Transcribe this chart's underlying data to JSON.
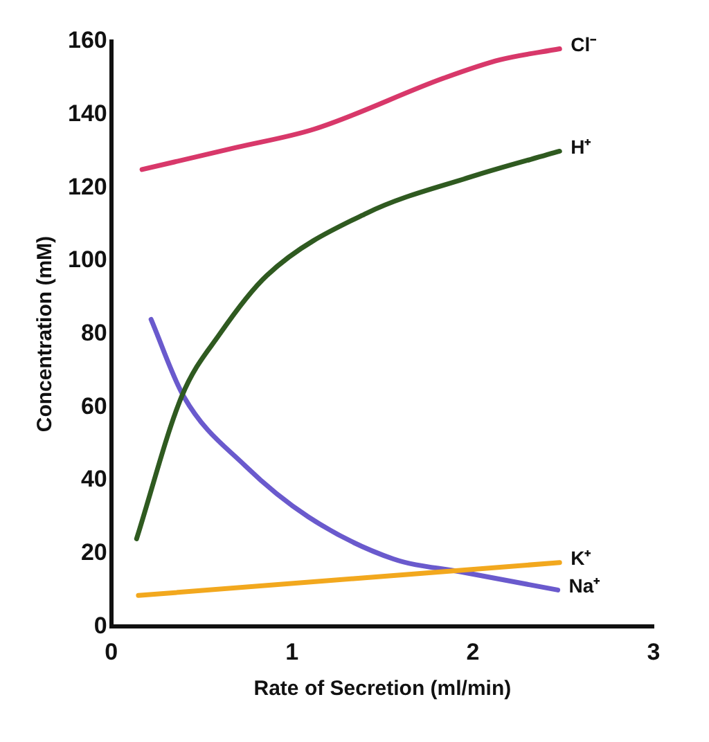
{
  "chart_data": {
    "type": "line",
    "xlabel": "Rate of Secretion (ml/min)",
    "ylabel": "Concentration (mM)",
    "xlim": [
      0,
      3
    ],
    "xticks": [
      0,
      1,
      2,
      3
    ],
    "ylim": [
      0,
      160
    ],
    "yticks": [
      0,
      20,
      40,
      60,
      80,
      100,
      120,
      140,
      160
    ],
    "grid": false,
    "legend": false,
    "marker": "none",
    "line_style": "solid",
    "series": [
      {
        "name": "Cl⁻",
        "color": "#d8386a",
        "x": [
          0.17,
          0.69,
          1.12,
          1.84,
          2.15,
          2.48
        ],
        "values": [
          125,
          131,
          136,
          150,
          155,
          158
        ]
      },
      {
        "name": "H⁺",
        "color": "#2f5a20",
        "x": [
          0.14,
          0.39,
          0.6,
          0.86,
          1.41,
          1.99,
          2.48
        ],
        "values": [
          24,
          63,
          80,
          96,
          113,
          123,
          130
        ]
      },
      {
        "name": "K⁺",
        "color": "#f2a81e",
        "x": [
          0.15,
          2.48
        ],
        "values": [
          8.5,
          17.5
        ]
      },
      {
        "name": "Na⁺",
        "color": "#6a5acd",
        "x": [
          0.22,
          0.4,
          0.74,
          1.09,
          1.56,
          1.93,
          2.47
        ],
        "values": [
          84,
          63,
          44,
          30,
          18.5,
          15,
          10
        ]
      }
    ]
  }
}
